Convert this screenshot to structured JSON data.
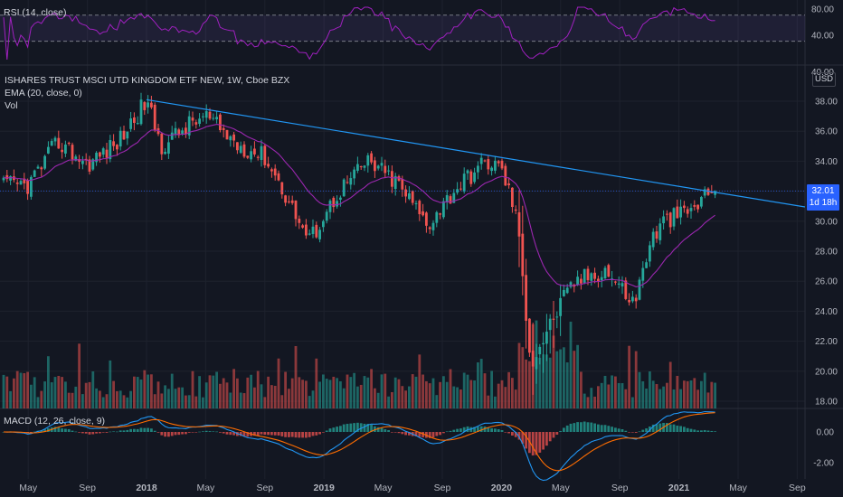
{
  "panels": {
    "rsi": {
      "legend": "RSI (14, close)",
      "ticks": [
        "80.00",
        "40.00",
        "40.00"
      ]
    },
    "main": {
      "title": "ISHARES TRUST MSCI UTD KINGDOM ETF NEW, 1W, Cboe BZX",
      "ema_legend": "EMA (20, close, 0)",
      "vol_legend": "Vol",
      "currency": "USD",
      "price_label": "32.01",
      "countdown": "1d 18h"
    },
    "macd": {
      "legend": "MACD (12, 26, close, 9)"
    }
  },
  "colors": {
    "background": "#131722",
    "grid": "#1e222d",
    "up": "#26a69a",
    "down": "#ef5350",
    "ema": "#9c27b0",
    "trendline": "#2196f3",
    "rsi_line": "#a020c0",
    "macd_line": "#2196f3",
    "signal_line": "#ff6d00",
    "price_badge": "#2962ff"
  },
  "chart_data": {
    "type": "candlestick",
    "title": "ISHARES TRUST MSCI UTD KINGDOM ETF NEW, 1W, Cboe BZX",
    "price_axis": {
      "ticks": [
        38,
        36,
        34,
        32,
        30,
        28,
        26,
        24,
        22,
        20,
        18
      ],
      "tick_labels": [
        "38.00",
        "36.00",
        "34.00",
        "32.00",
        "30.00",
        "28.00",
        "26.00",
        "24.00",
        "22.00",
        "20.00",
        "18.00"
      ],
      "ylim": [
        17.5,
        39.5
      ]
    },
    "time_axis": {
      "labels": [
        "May",
        "Sep",
        "2018",
        "May",
        "Sep",
        "2019",
        "May",
        "Sep",
        "2020",
        "May",
        "Sep",
        "2021",
        "May",
        "Sep"
      ]
    },
    "price_anchors": [
      {
        "date": "2017-05",
        "close": 32.4
      },
      {
        "date": "2017-07",
        "close": 35.3
      },
      {
        "date": "2017-09",
        "close": 33.8
      },
      {
        "date": "2017-11",
        "close": 35.2
      },
      {
        "date": "2018-01",
        "close": 38.0
      },
      {
        "date": "2018-02",
        "close": 35.0
      },
      {
        "date": "2018-04",
        "close": 36.5
      },
      {
        "date": "2018-05",
        "close": 37.0
      },
      {
        "date": "2018-07",
        "close": 35.2
      },
      {
        "date": "2018-09",
        "close": 34.3
      },
      {
        "date": "2018-10",
        "close": 32.5
      },
      {
        "date": "2018-12",
        "close": 28.7
      },
      {
        "date": "2019-02",
        "close": 32.0
      },
      {
        "date": "2019-04",
        "close": 34.0
      },
      {
        "date": "2019-06",
        "close": 32.5
      },
      {
        "date": "2019-08",
        "close": 29.8
      },
      {
        "date": "2019-10",
        "close": 32.3
      },
      {
        "date": "2019-12",
        "close": 34.0
      },
      {
        "date": "2020-01",
        "close": 33.5
      },
      {
        "date": "2020-02",
        "close": 30.5
      },
      {
        "date": "2020-03",
        "close": 20.5
      },
      {
        "date": "2020-05",
        "close": 24.5
      },
      {
        "date": "2020-06",
        "close": 26.0
      },
      {
        "date": "2020-08",
        "close": 26.8
      },
      {
        "date": "2020-10",
        "close": 24.5
      },
      {
        "date": "2020-11",
        "close": 28.5
      },
      {
        "date": "2020-12",
        "close": 30.0
      },
      {
        "date": "2021-02",
        "close": 30.8
      },
      {
        "date": "2021-03",
        "close": 32.0
      }
    ],
    "last_price": 32.01,
    "ema_period": 20,
    "trendline": {
      "start": {
        "date": "2018-01",
        "price": 38.1
      },
      "end": {
        "date": "2021-03",
        "price": 32.0
      }
    },
    "rsi": {
      "levels": [
        70,
        30
      ],
      "tick_labels": [
        "80.00",
        "40.00"
      ]
    },
    "macd": {
      "fast": 12,
      "slow": 26,
      "signal": 9,
      "tick_labels": [
        "0.00",
        "-2.00"
      ]
    }
  }
}
